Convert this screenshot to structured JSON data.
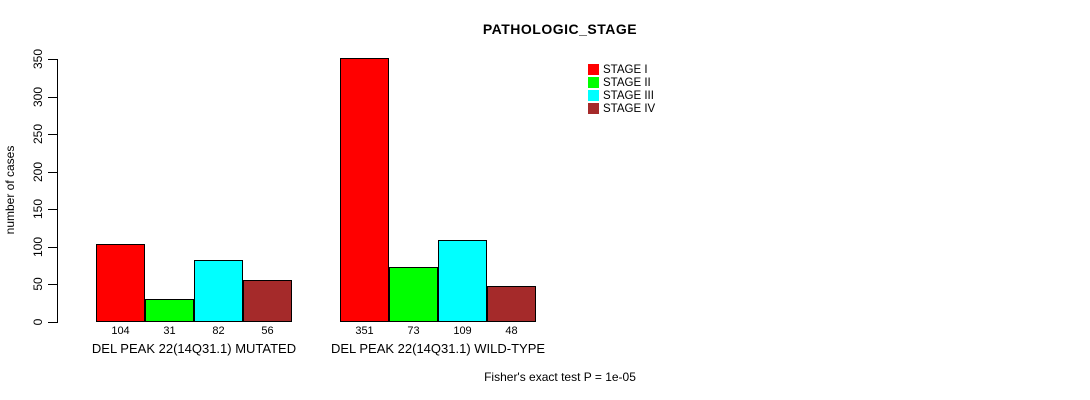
{
  "chart_data": {
    "type": "bar",
    "title": "PATHOLOGIC_STAGE",
    "ylabel": "number of cases",
    "ylim": [
      0,
      350
    ],
    "yticks": [
      0,
      50,
      100,
      150,
      200,
      250,
      300,
      350
    ],
    "grid": false,
    "legend_position": "top-right",
    "categories": [
      "DEL PEAK 22(14Q31.1) MUTATED",
      "DEL PEAK 22(14Q31.1) WILD-TYPE"
    ],
    "series": [
      {
        "name": "STAGE I",
        "color": "#FF0000",
        "values": [
          104,
          351
        ]
      },
      {
        "name": "STAGE II",
        "color": "#00FF00",
        "values": [
          31,
          73
        ]
      },
      {
        "name": "STAGE III",
        "color": "#00FFFF",
        "values": [
          82,
          109
        ]
      },
      {
        "name": "STAGE IV",
        "color": "#A52A2A",
        "values": [
          56,
          48
        ]
      }
    ],
    "bar_value_labels": [
      [
        104,
        31,
        82,
        56
      ],
      [
        351,
        73,
        109,
        48
      ]
    ],
    "annotation": "Fisher's exact test P = 1e-05"
  },
  "icons": {
    "legend_swatch": "color-swatch-icon"
  }
}
